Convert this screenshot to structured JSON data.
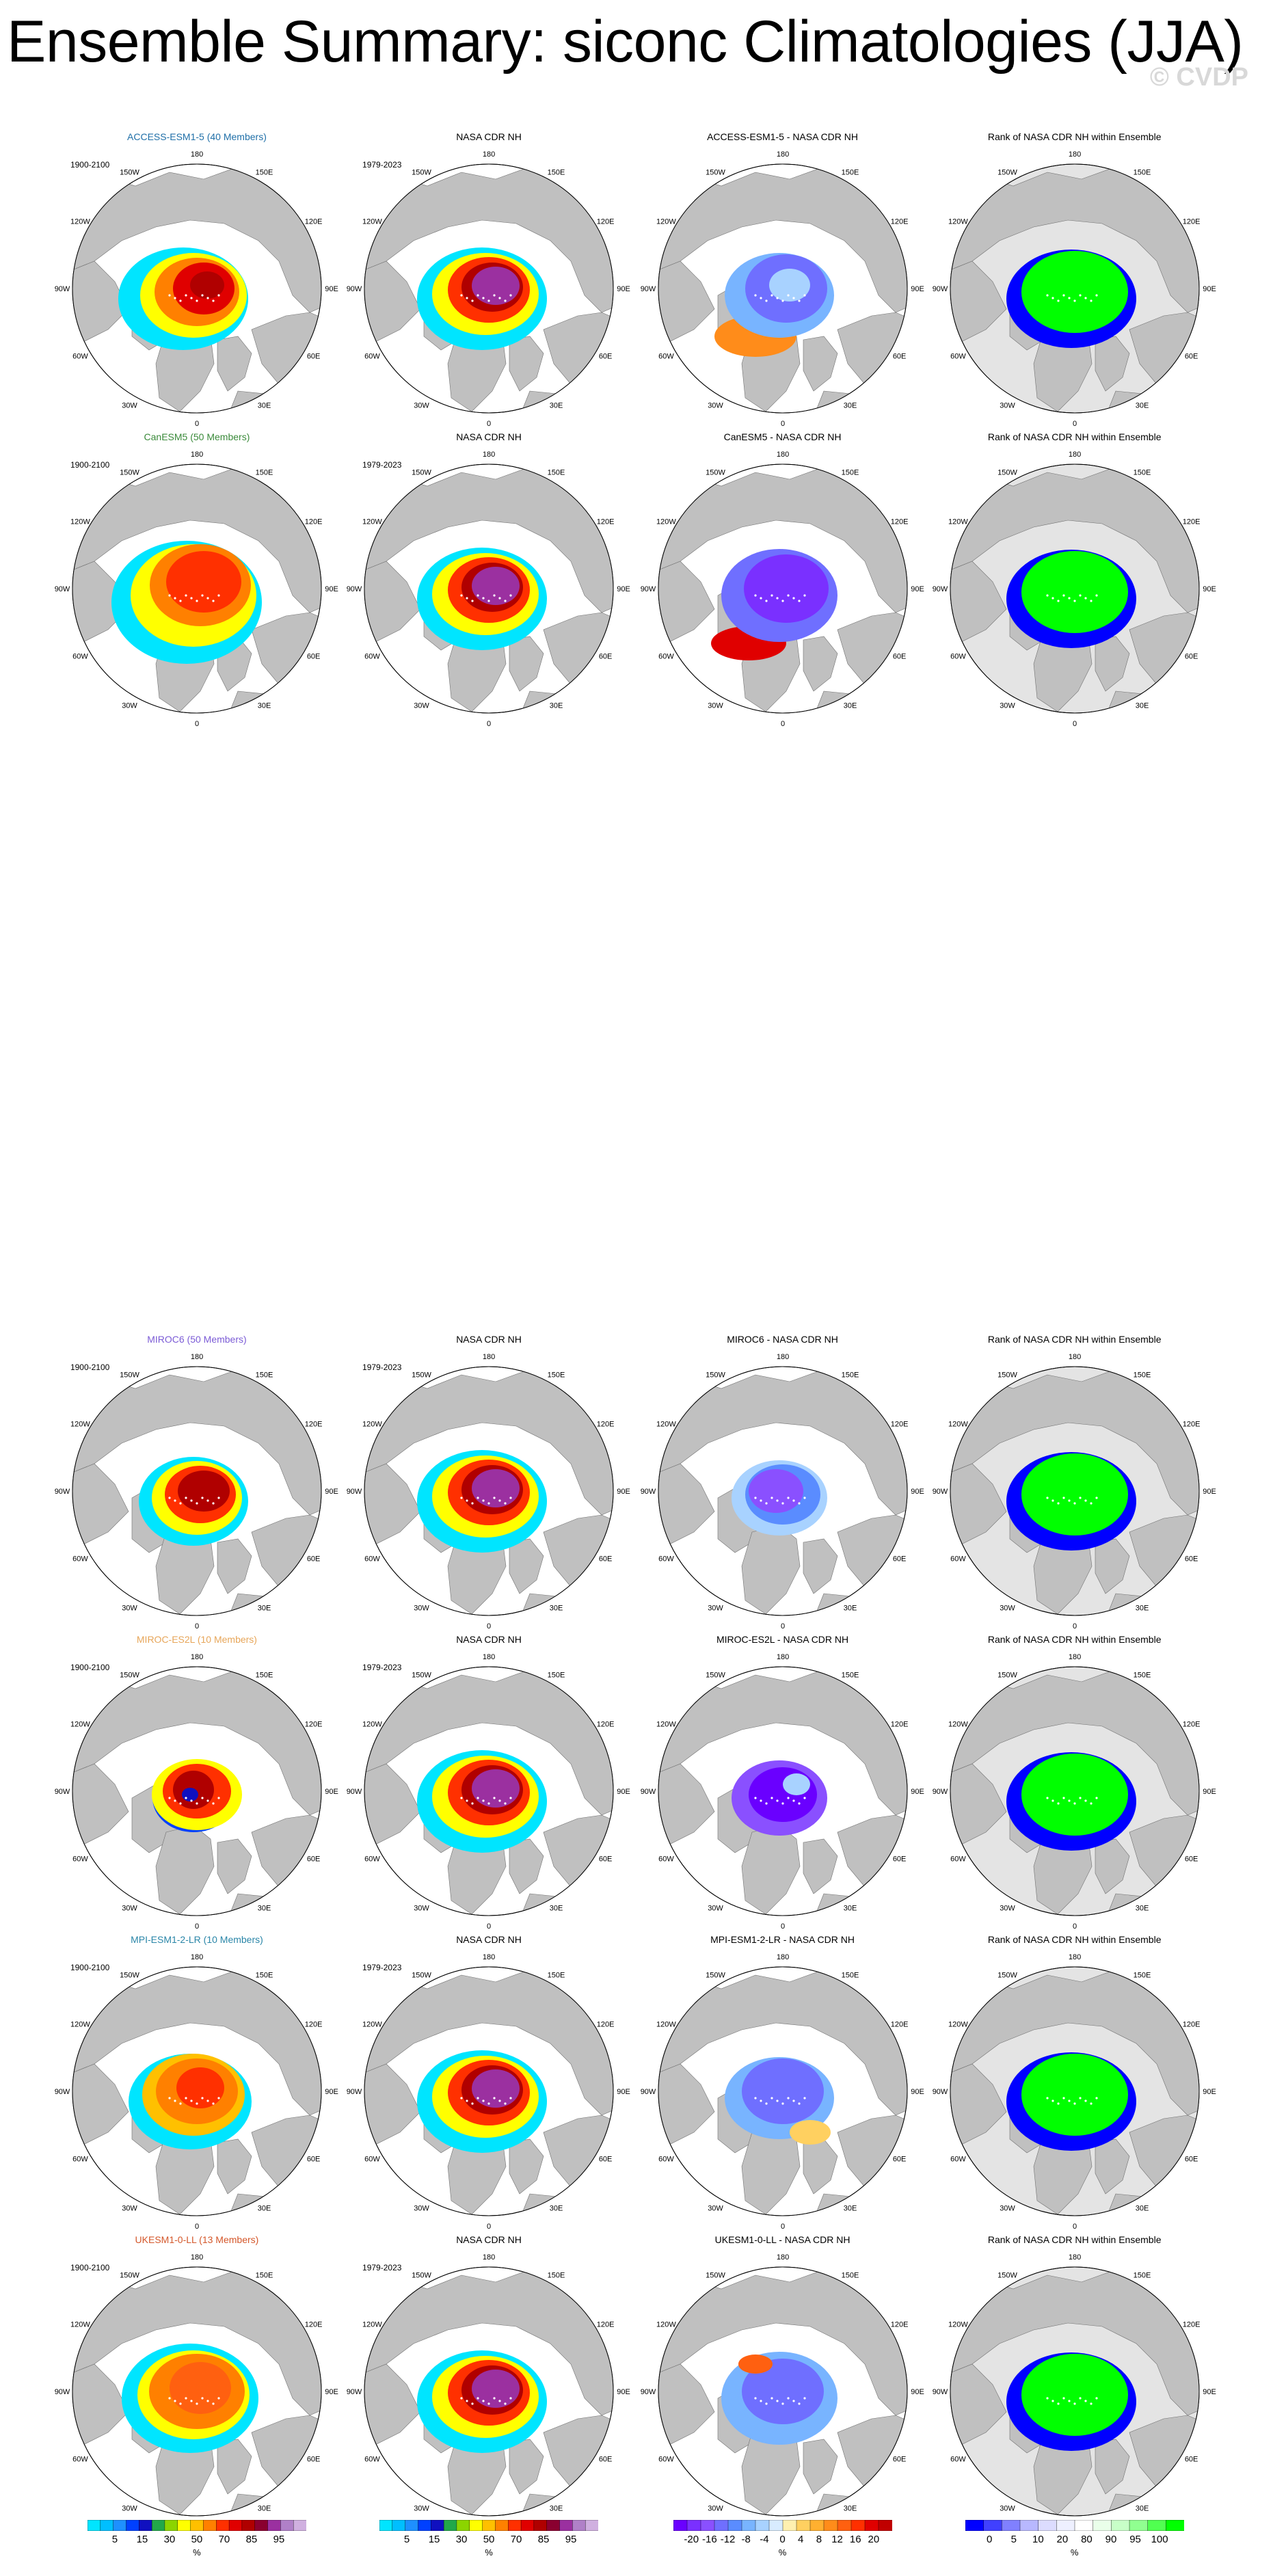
{
  "title": "Ensemble Summary: siconc Climatologies (JJA)",
  "watermark": "© CVDP",
  "longitude_labels": [
    "180",
    "150E",
    "120E",
    "90E",
    "60E",
    "30E",
    "0",
    "30W",
    "60W",
    "90W",
    "120W",
    "150W"
  ],
  "rows": [
    {
      "model": "ACCESS-ESM1-5 (40 Members)",
      "model_color": "#1f6fa8",
      "period": "1900-2100",
      "obs_period": "1979-2023",
      "panels": [
        "NASA CDR NH",
        "ACCESS-ESM1-5 - NASA CDR NH",
        "Rank of NASA CDR NH within Ensemble"
      ]
    },
    {
      "model": "CanESM5 (50 Members)",
      "model_color": "#3a8a3a",
      "period": "1900-2100",
      "obs_period": "1979-2023",
      "panels": [
        "NASA CDR NH",
        "CanESM5 - NASA CDR NH",
        "Rank of NASA CDR NH within Ensemble"
      ]
    },
    {
      "model": "MIROC6 (50 Members)",
      "model_color": "#7b5bd6",
      "period": "1900-2100",
      "obs_period": "1979-2023",
      "panels": [
        "NASA CDR NH",
        "MIROC6 - NASA CDR NH",
        "Rank of NASA CDR NH within Ensemble"
      ]
    },
    {
      "model": "MIROC-ES2L (10 Members)",
      "model_color": "#e7a65a",
      "period": "1900-2100",
      "obs_period": "1979-2023",
      "panels": [
        "NASA CDR NH",
        "MIROC-ES2L - NASA CDR NH",
        "Rank of NASA CDR NH within Ensemble"
      ]
    },
    {
      "model": "MPI-ESM1-2-LR (10 Members)",
      "model_color": "#2a86a8",
      "period": "1900-2100",
      "obs_period": "1979-2023",
      "panels": [
        "NASA CDR NH",
        "MPI-ESM1-2-LR - NASA CDR NH",
        "Rank of NASA CDR NH within Ensemble"
      ]
    },
    {
      "model": "UKESM1-0-LL (13 Members)",
      "model_color": "#d4572a",
      "period": "1900-2100",
      "obs_period": "1979-2023",
      "panels": [
        "NASA CDR NH",
        "UKESM1-0-LL - NASA CDR NH",
        "Rank of NASA CDR NH within Ensemble"
      ]
    }
  ],
  "colorbars": {
    "concentration": {
      "unit": "%",
      "ticks": [
        "5",
        "15",
        "30",
        "50",
        "70",
        "85",
        "95"
      ],
      "colors": [
        "#00e5ff",
        "#00bfff",
        "#1e90ff",
        "#0040ff",
        "#1010c0",
        "#22a84a",
        "#8cd400",
        "#ffff00",
        "#ffc000",
        "#ff8000",
        "#ff3000",
        "#e00000",
        "#b00000",
        "#8a0030",
        "#9b30a0",
        "#b080c8",
        "#d0b0e0"
      ]
    },
    "difference": {
      "unit": "%",
      "ticks": [
        "-20",
        "-16",
        "-12",
        "-8",
        "-4",
        "0",
        "4",
        "8",
        "12",
        "16",
        "20"
      ],
      "colors": [
        "#6a00ff",
        "#7a30ff",
        "#8a50ff",
        "#6f6fff",
        "#5a8cff",
        "#78b4ff",
        "#a8d2ff",
        "#d8ecff",
        "#fff0b0",
        "#ffd060",
        "#ffb030",
        "#ff8c1a",
        "#ff6010",
        "#ff3000",
        "#e00000",
        "#c00000"
      ]
    },
    "rank": {
      "unit": "%",
      "ticks": [
        "0",
        "5",
        "10",
        "20",
        "80",
        "90",
        "95",
        "100"
      ],
      "colors": [
        "#0000ff",
        "#4040ff",
        "#8080ff",
        "#b8b8ff",
        "#dcdcff",
        "#eef0ff",
        "#ffffff",
        "#eaffea",
        "#c8ffc8",
        "#90ff90",
        "#50ff50",
        "#00ff00"
      ]
    }
  }
}
